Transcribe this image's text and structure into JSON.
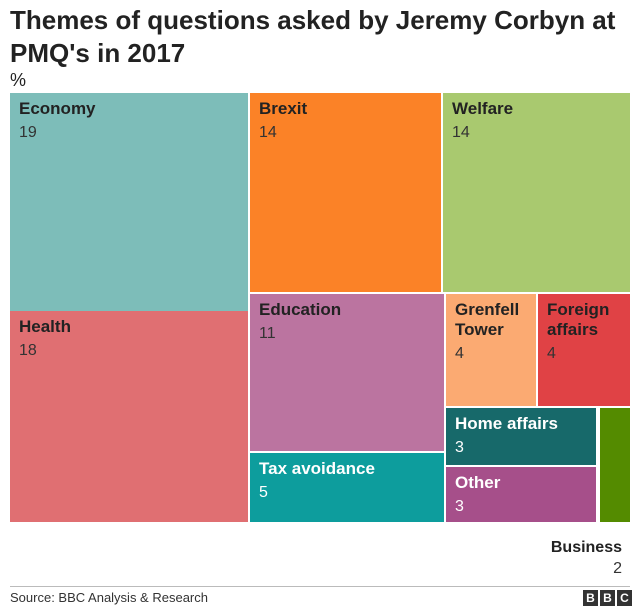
{
  "title": "Themes of questions asked by Jeremy Corbyn at PMQ's in 2017",
  "unit_label": "%",
  "source": "Source: BBC Analysis & Research",
  "logo_letters": [
    "B",
    "B",
    "C"
  ],
  "chart_data": {
    "type": "treemap",
    "title": "Themes of questions asked by Jeremy Corbyn at PMQ's in 2017",
    "unit": "%",
    "categories": [
      "Economy",
      "Health",
      "Brexit",
      "Welfare",
      "Education",
      "Tax avoidance",
      "Grenfell Tower",
      "Foreign affairs",
      "Home affairs",
      "Other",
      "Business"
    ],
    "values": [
      19,
      18,
      14,
      14,
      11,
      5,
      4,
      4,
      3,
      3,
      2
    ],
    "colors": [
      "#7dbdb9",
      "#e06f72",
      "#fb8227",
      "#a9c96f",
      "#bb74a0",
      "#0d9d9d",
      "#fbaa72",
      "#e04245",
      "#17696a",
      "#a64f8a",
      "#548b00"
    ]
  }
}
